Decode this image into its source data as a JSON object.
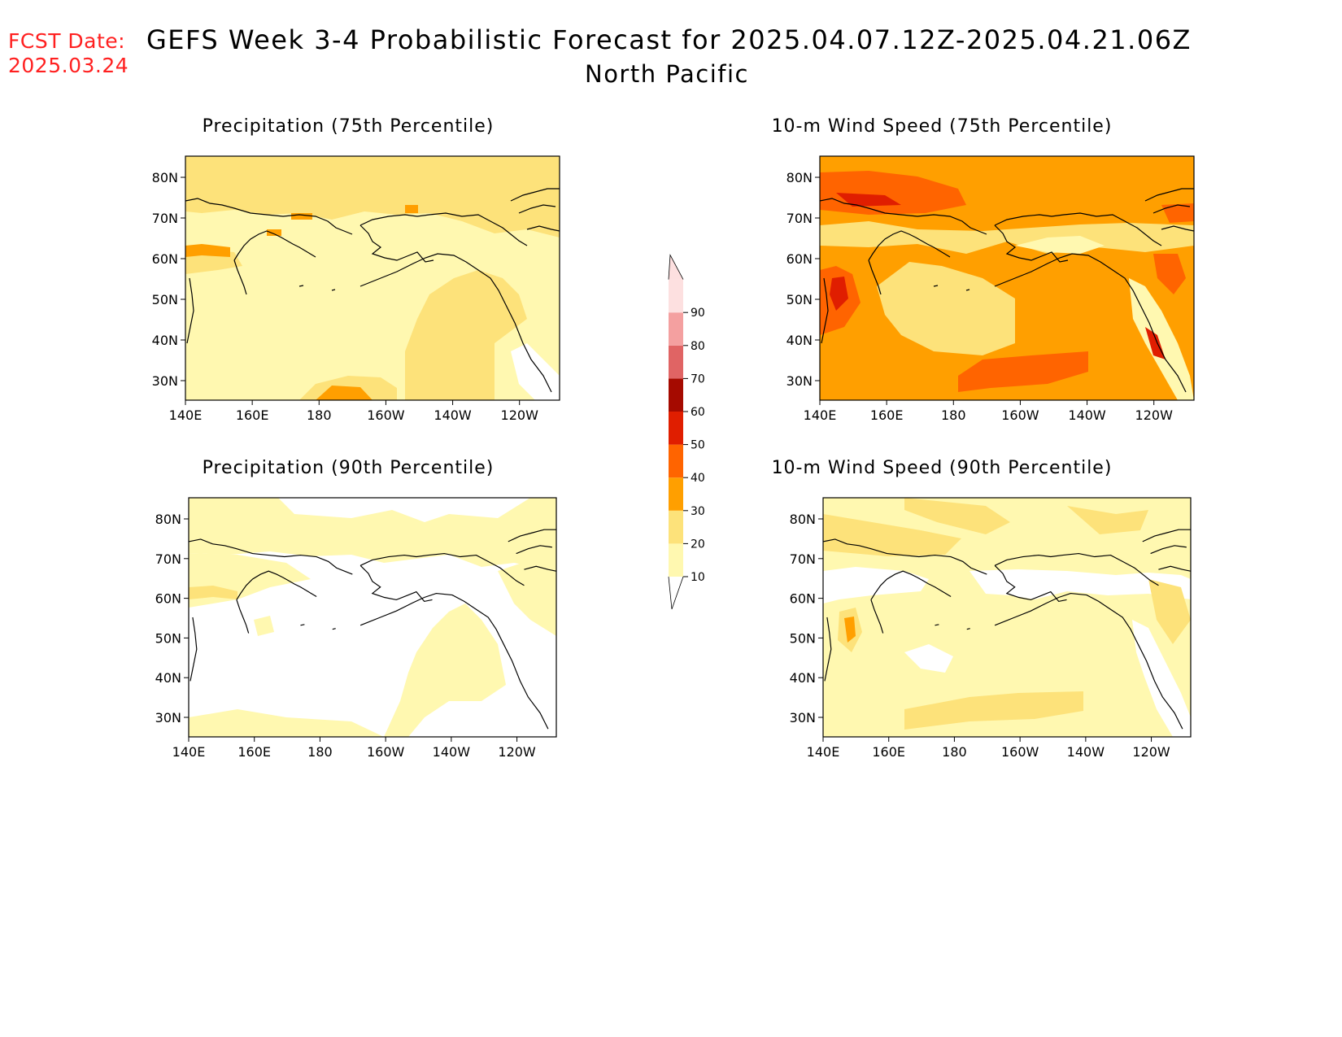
{
  "header": {
    "fcst_label": "FCST Date:",
    "fcst_date": "2025.03.24",
    "title": "GEFS Week 3-4 Probabilistic Forecast for 2025.04.07.12Z-2025.04.21.06Z",
    "subtitle": "North Pacific"
  },
  "panels": [
    {
      "id": "precip-75",
      "title": "Precipitation (75th Percentile)"
    },
    {
      "id": "wind-75",
      "title": "10-m Wind Speed (75th Percentile)"
    },
    {
      "id": "precip-90",
      "title": "Precipitation (90th Percentile)"
    },
    {
      "id": "wind-90",
      "title": "10-m Wind Speed (90th Percentile)"
    }
  ],
  "axes": {
    "lat_labels": [
      "80N",
      "70N",
      "60N",
      "50N",
      "40N",
      "30N"
    ],
    "lon_labels": [
      "140E",
      "160E",
      "180",
      "160W",
      "140W",
      "120W"
    ]
  },
  "colorbar": {
    "levels": [
      "10",
      "20",
      "30",
      "40",
      "50",
      "60",
      "70",
      "80",
      "90"
    ],
    "colors": [
      "#fff8b0",
      "#fde27a",
      "#ff9f00",
      "#ff6400",
      "#e01e00",
      "#a50a00",
      "#e06464",
      "#f4a0a0",
      "#fde0e0"
    ]
  }
}
